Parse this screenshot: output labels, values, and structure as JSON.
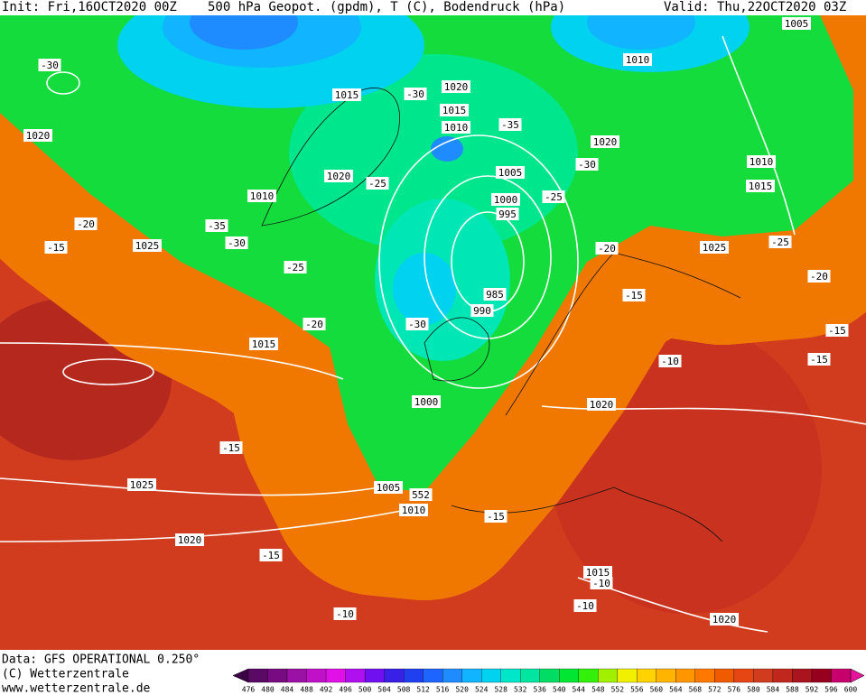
{
  "header": {
    "init": "Init: Fri,16OCT2020 00Z",
    "title": "500 hPa Geopot. (gpdm), T (C), Bodendruck (hPa)",
    "valid": "Valid: Thu,22OCT2020 03Z"
  },
  "footer": {
    "data": "Data: GFS OPERATIONAL 0.250°",
    "copyright": "(C) Wetterzentrale",
    "url": "www.wetterzentrale.de"
  },
  "colorbar": {
    "labels": [
      "476",
      "480",
      "484",
      "488",
      "492",
      "496",
      "500",
      "504",
      "508",
      "512",
      "516",
      "520",
      "524",
      "528",
      "532",
      "536",
      "540",
      "544",
      "548",
      "552",
      "556",
      "560",
      "564",
      "568",
      "572",
      "576",
      "580",
      "584",
      "588",
      "592",
      "596",
      "600"
    ],
    "colors": [
      "#3c0046",
      "#5a0a64",
      "#780a82",
      "#9b10a5",
      "#c010c8",
      "#e010e6",
      "#b010f0",
      "#7010f0",
      "#3820e6",
      "#2040f0",
      "#1e64ff",
      "#1e8cff",
      "#10b4ff",
      "#00d2f0",
      "#00e6c8",
      "#00e6a0",
      "#00dc64",
      "#00e632",
      "#32f00a",
      "#a0f000",
      "#f0f000",
      "#ffd200",
      "#ffb400",
      "#ff9600",
      "#ff7800",
      "#f05a00",
      "#e64614",
      "#d23c1e",
      "#c0281e",
      "#aa141e",
      "#96001e",
      "#c8006e",
      "#e6149b"
    ]
  },
  "labels": [
    "-30",
    "1020",
    "-20",
    "-15",
    "1025",
    "1015",
    "-30",
    "1020",
    "1015",
    "1010",
    "-35",
    "1020",
    "-25",
    "1010",
    "-35",
    "-30",
    "-25",
    "1005",
    "1000",
    "995",
    "985",
    "990",
    "-30",
    "-20",
    "1015",
    "1000",
    "1020",
    "-30",
    "-25",
    "-20",
    "1010",
    "1015",
    "-25",
    "1025",
    "-20",
    "-15",
    "-15",
    "-15",
    "-10",
    "1020",
    "1010",
    "1005",
    "-15",
    "1025",
    "1005",
    "552",
    "1010",
    "-15",
    "1020",
    "-15",
    "1015",
    "-10",
    "-10",
    "-10",
    "1020"
  ]
}
